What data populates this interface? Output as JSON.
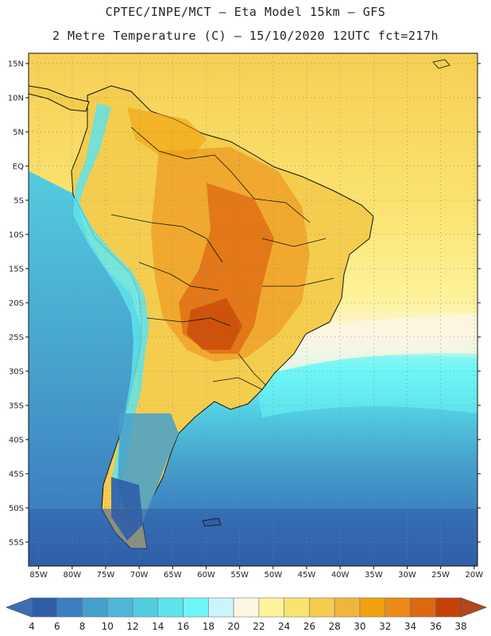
{
  "header": {
    "line1": "CPTEC/INPE/MCT –  Eta Model 15km – GFS",
    "line2": "2 Metre Temperature (C) – 15/10/2020 12UTC fct=217h"
  },
  "map": {
    "lat_labels": [
      "15N",
      "10N",
      "5N",
      "EQ",
      "5S",
      "10S",
      "15S",
      "20S",
      "25S",
      "30S",
      "35S",
      "40S",
      "45S",
      "50S",
      "55S"
    ],
    "lat_values": [
      15,
      10,
      5,
      0,
      -5,
      -10,
      -15,
      -20,
      -25,
      -30,
      -35,
      -40,
      -45,
      -50,
      -55
    ],
    "lon_labels": [
      "85W",
      "80W",
      "75W",
      "70W",
      "65W",
      "60W",
      "55W",
      "50W",
      "45W",
      "40W",
      "35W",
      "30W",
      "25W",
      "20W"
    ],
    "lon_values": [
      -85,
      -80,
      -75,
      -70,
      -65,
      -60,
      -55,
      -50,
      -45,
      -40,
      -35,
      -30,
      -25,
      -20
    ]
  },
  "colorbar": {
    "labels": [
      "4",
      "6",
      "8",
      "10",
      "12",
      "14",
      "16",
      "18",
      "20",
      "22",
      "24",
      "26",
      "28",
      "30",
      "32",
      "34",
      "36",
      "38"
    ],
    "below_color": "#3a6fb5",
    "above_color": "#b5461a",
    "colors": [
      "#2f5ea8",
      "#3b7fc0",
      "#46a0cc",
      "#4fb8d8",
      "#52cde0",
      "#5ee3ea",
      "#6ef6f6",
      "#c9f5fb",
      "#fdf6e2",
      "#fdf39a",
      "#fbe370",
      "#f4cd4f",
      "#efb53d",
      "#f0a20e",
      "#ec8a1a",
      "#de6810",
      "#c5430a"
    ]
  },
  "palette": {
    "ocean_equatorial": "#f6d253",
    "ocean_south_atlantic": "#fdf39a",
    "land_warm": "#efa52a",
    "land_hot": "#d46a1c",
    "southern_cold": "#2f5ea8",
    "pacific_cool": "#4fb8d8",
    "andes": "#5ee3ea"
  }
}
